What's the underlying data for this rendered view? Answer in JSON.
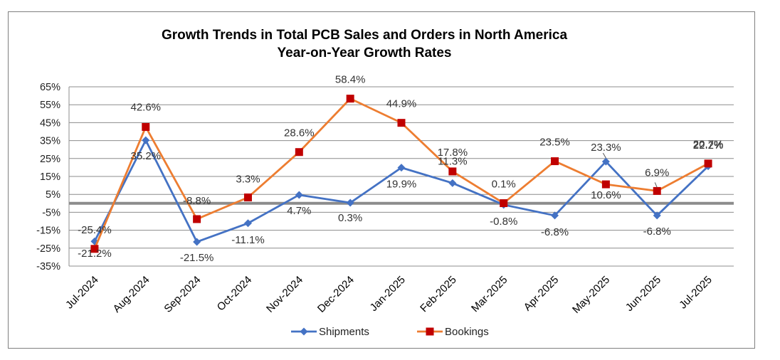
{
  "chart_data": {
    "type": "line",
    "title": "Growth Trends in Total PCB Sales and Orders in North America",
    "subtitle": "Year-on-Year Growth Rates",
    "categories": [
      "Jul-2024",
      "Aug-2024",
      "Sep-2024",
      "Oct-2024",
      "Nov-2024",
      "Dec-2024",
      "Jan-2025",
      "Feb-2025",
      "Mar-2025",
      "Apr-2025",
      "May-2025",
      "Jun-2025",
      "Jul-2025"
    ],
    "y_ticks": [
      "65%",
      "55%",
      "45%",
      "35%",
      "25%",
      "15%",
      "5%",
      "-5%",
      "-15%",
      "-25%",
      "-35%"
    ],
    "ylim": [
      -35,
      65
    ],
    "grid": true,
    "legend_position": "bottom",
    "series": [
      {
        "name": "Shipments",
        "color": "#4472c4",
        "marker": "diamond",
        "values": [
          -21.2,
          35.2,
          -21.5,
          -11.1,
          4.7,
          0.3,
          19.9,
          11.3,
          -0.8,
          -6.8,
          23.3,
          -6.8,
          20.7
        ],
        "labels": [
          "-21.2%",
          "35.2%",
          "-21.5%",
          "-11.1%",
          "4.7%",
          "0.3%",
          "19.9%",
          "11.3%",
          "-0.8%",
          "-6.8%",
          "23.3%",
          "-6.8%",
          "20.7%"
        ]
      },
      {
        "name": "Bookings",
        "color": "#ed7d31",
        "marker_color": "#c00000",
        "marker": "square",
        "values": [
          -25.4,
          42.6,
          -8.8,
          3.3,
          28.6,
          58.4,
          44.9,
          17.8,
          0.1,
          23.5,
          10.6,
          6.9,
          22.2
        ],
        "labels": [
          "-25.4%",
          "42.6%",
          "-8.8%",
          "3.3%",
          "28.6%",
          "58.4%",
          "44.9%",
          "17.8%",
          "0.1%",
          "23.5%",
          "10.6%",
          "6.9%",
          "22.2%"
        ]
      }
    ]
  }
}
